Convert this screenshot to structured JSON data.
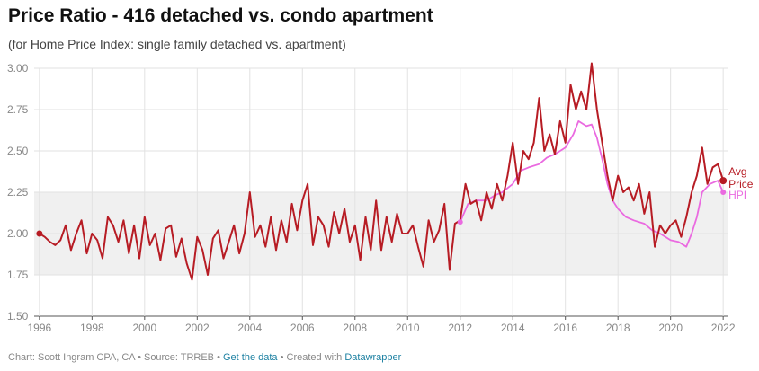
{
  "chart_data": {
    "type": "line",
    "title": "Price Ratio - 416 detached vs. condo apartment",
    "subtitle": "(for Home Price Index: single family detached vs. apartment)",
    "xlabel": "",
    "ylabel": "",
    "xlim": [
      1995.8,
      2022.2
    ],
    "ylim": [
      1.5,
      3.0
    ],
    "x_ticks": [
      "1996",
      "1998",
      "2000",
      "2002",
      "2004",
      "2006",
      "2008",
      "2010",
      "2012",
      "2014",
      "2016",
      "2018",
      "2020",
      "2022"
    ],
    "y_ticks": [
      "1.50",
      "1.75",
      "2.00",
      "2.25",
      "2.50",
      "2.75",
      "3.00"
    ],
    "shaded_band": {
      "y_from": 1.75,
      "y_to": 2.25
    },
    "series": [
      {
        "name": "Avg Price",
        "label_line1": "Avg",
        "label_line2": "Price",
        "color": "#b71c24",
        "points": [
          [
            1996.0,
            2.0
          ],
          [
            1996.2,
            1.98
          ],
          [
            1996.4,
            1.95
          ],
          [
            1996.6,
            1.93
          ],
          [
            1996.8,
            1.96
          ],
          [
            1997.0,
            2.05
          ],
          [
            1997.2,
            1.9
          ],
          [
            1997.4,
            2.0
          ],
          [
            1997.6,
            2.08
          ],
          [
            1997.8,
            1.88
          ],
          [
            1998.0,
            2.0
          ],
          [
            1998.2,
            1.96
          ],
          [
            1998.4,
            1.85
          ],
          [
            1998.6,
            2.1
          ],
          [
            1998.8,
            2.05
          ],
          [
            1999.0,
            1.95
          ],
          [
            1999.2,
            2.08
          ],
          [
            1999.4,
            1.88
          ],
          [
            1999.6,
            2.05
          ],
          [
            1999.8,
            1.85
          ],
          [
            2000.0,
            2.1
          ],
          [
            2000.2,
            1.93
          ],
          [
            2000.4,
            2.0
          ],
          [
            2000.6,
            1.84
          ],
          [
            2000.8,
            2.03
          ],
          [
            2001.0,
            2.05
          ],
          [
            2001.2,
            1.86
          ],
          [
            2001.4,
            1.97
          ],
          [
            2001.6,
            1.82
          ],
          [
            2001.8,
            1.72
          ],
          [
            2002.0,
            1.98
          ],
          [
            2002.2,
            1.9
          ],
          [
            2002.4,
            1.75
          ],
          [
            2002.6,
            1.97
          ],
          [
            2002.8,
            2.02
          ],
          [
            2003.0,
            1.85
          ],
          [
            2003.2,
            1.95
          ],
          [
            2003.4,
            2.05
          ],
          [
            2003.6,
            1.88
          ],
          [
            2003.8,
            2.0
          ],
          [
            2004.0,
            2.25
          ],
          [
            2004.2,
            1.98
          ],
          [
            2004.4,
            2.05
          ],
          [
            2004.6,
            1.92
          ],
          [
            2004.8,
            2.1
          ],
          [
            2005.0,
            1.9
          ],
          [
            2005.2,
            2.08
          ],
          [
            2005.4,
            1.95
          ],
          [
            2005.6,
            2.18
          ],
          [
            2005.8,
            2.02
          ],
          [
            2006.0,
            2.2
          ],
          [
            2006.2,
            2.3
          ],
          [
            2006.4,
            1.93
          ],
          [
            2006.6,
            2.1
          ],
          [
            2006.8,
            2.05
          ],
          [
            2007.0,
            1.92
          ],
          [
            2007.2,
            2.13
          ],
          [
            2007.4,
            2.0
          ],
          [
            2007.6,
            2.15
          ],
          [
            2007.8,
            1.95
          ],
          [
            2008.0,
            2.05
          ],
          [
            2008.2,
            1.84
          ],
          [
            2008.4,
            2.1
          ],
          [
            2008.6,
            1.9
          ],
          [
            2008.8,
            2.2
          ],
          [
            2009.0,
            1.9
          ],
          [
            2009.2,
            2.1
          ],
          [
            2009.4,
            1.95
          ],
          [
            2009.6,
            2.12
          ],
          [
            2009.8,
            2.0
          ],
          [
            2010.0,
            2.0
          ],
          [
            2010.2,
            2.05
          ],
          [
            2010.4,
            1.92
          ],
          [
            2010.6,
            1.8
          ],
          [
            2010.8,
            2.08
          ],
          [
            2011.0,
            1.95
          ],
          [
            2011.2,
            2.02
          ],
          [
            2011.4,
            2.18
          ],
          [
            2011.6,
            1.78
          ],
          [
            2011.8,
            2.06
          ],
          [
            2012.0,
            2.08
          ],
          [
            2012.2,
            2.3
          ],
          [
            2012.4,
            2.18
          ],
          [
            2012.6,
            2.2
          ],
          [
            2012.8,
            2.08
          ],
          [
            2013.0,
            2.25
          ],
          [
            2013.2,
            2.15
          ],
          [
            2013.4,
            2.3
          ],
          [
            2013.6,
            2.2
          ],
          [
            2013.8,
            2.35
          ],
          [
            2014.0,
            2.55
          ],
          [
            2014.2,
            2.3
          ],
          [
            2014.4,
            2.5
          ],
          [
            2014.6,
            2.45
          ],
          [
            2014.8,
            2.55
          ],
          [
            2015.0,
            2.82
          ],
          [
            2015.2,
            2.5
          ],
          [
            2015.4,
            2.6
          ],
          [
            2015.6,
            2.48
          ],
          [
            2015.8,
            2.68
          ],
          [
            2016.0,
            2.55
          ],
          [
            2016.2,
            2.9
          ],
          [
            2016.4,
            2.75
          ],
          [
            2016.6,
            2.86
          ],
          [
            2016.8,
            2.75
          ],
          [
            2017.0,
            3.03
          ],
          [
            2017.2,
            2.75
          ],
          [
            2017.4,
            2.55
          ],
          [
            2017.6,
            2.35
          ],
          [
            2017.8,
            2.2
          ],
          [
            2018.0,
            2.35
          ],
          [
            2018.2,
            2.25
          ],
          [
            2018.4,
            2.28
          ],
          [
            2018.6,
            2.2
          ],
          [
            2018.8,
            2.3
          ],
          [
            2019.0,
            2.12
          ],
          [
            2019.2,
            2.25
          ],
          [
            2019.4,
            1.92
          ],
          [
            2019.6,
            2.05
          ],
          [
            2019.8,
            2.0
          ],
          [
            2020.0,
            2.05
          ],
          [
            2020.2,
            2.08
          ],
          [
            2020.4,
            1.98
          ],
          [
            2020.6,
            2.1
          ],
          [
            2020.8,
            2.25
          ],
          [
            2021.0,
            2.35
          ],
          [
            2021.2,
            2.52
          ],
          [
            2021.4,
            2.3
          ],
          [
            2021.6,
            2.4
          ],
          [
            2021.8,
            2.42
          ],
          [
            2022.0,
            2.32
          ]
        ]
      },
      {
        "name": "HPI",
        "label_line1": "HPI",
        "color": "#ea6ae0",
        "points": [
          [
            2012.0,
            2.07
          ],
          [
            2012.3,
            2.18
          ],
          [
            2012.6,
            2.2
          ],
          [
            2013.0,
            2.2
          ],
          [
            2013.3,
            2.23
          ],
          [
            2013.6,
            2.25
          ],
          [
            2014.0,
            2.3
          ],
          [
            2014.3,
            2.38
          ],
          [
            2014.6,
            2.4
          ],
          [
            2015.0,
            2.42
          ],
          [
            2015.3,
            2.46
          ],
          [
            2015.6,
            2.48
          ],
          [
            2016.0,
            2.52
          ],
          [
            2016.3,
            2.6
          ],
          [
            2016.5,
            2.68
          ],
          [
            2016.8,
            2.65
          ],
          [
            2017.0,
            2.66
          ],
          [
            2017.2,
            2.58
          ],
          [
            2017.4,
            2.45
          ],
          [
            2017.6,
            2.3
          ],
          [
            2017.8,
            2.2
          ],
          [
            2018.0,
            2.15
          ],
          [
            2018.3,
            2.1
          ],
          [
            2018.6,
            2.08
          ],
          [
            2019.0,
            2.06
          ],
          [
            2019.3,
            2.02
          ],
          [
            2019.6,
            2.0
          ],
          [
            2020.0,
            1.96
          ],
          [
            2020.3,
            1.95
          ],
          [
            2020.6,
            1.92
          ],
          [
            2020.8,
            2.0
          ],
          [
            2021.0,
            2.1
          ],
          [
            2021.2,
            2.25
          ],
          [
            2021.5,
            2.3
          ],
          [
            2021.8,
            2.32
          ],
          [
            2022.0,
            2.25
          ]
        ]
      }
    ]
  },
  "footer": {
    "prefix": "Chart: Scott Ingram CPA, CA • Source: TRREB • ",
    "get_data": "Get the data",
    "middle": " • Created with ",
    "datawrapper": "Datawrapper"
  }
}
